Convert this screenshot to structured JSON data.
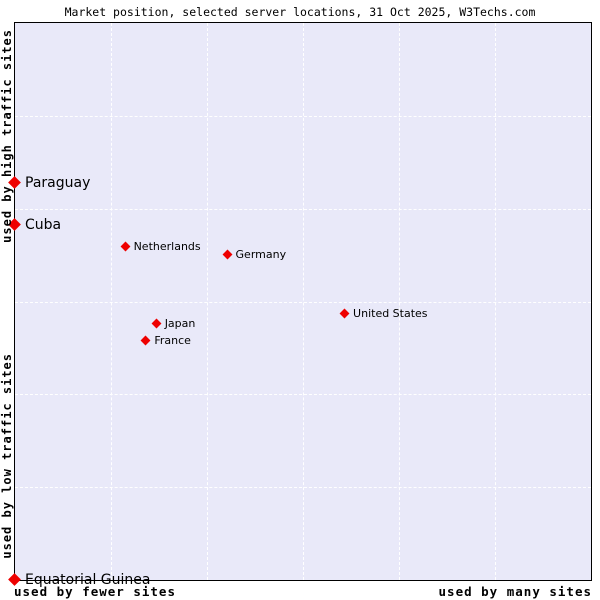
{
  "title": "Market position, selected server locations, 31 Oct 2025, W3Techs.com",
  "axes": {
    "y_top": "used by high traffic sites",
    "y_bottom": "used by low traffic sites",
    "x_left": "used by fewer sites",
    "x_right": "used by many sites"
  },
  "colors": {
    "marker": "#ee0000",
    "plot_background": "#e9e9f9",
    "grid_line": "#ffffff",
    "border": "#000000",
    "text": "#000000"
  },
  "chart_data": {
    "type": "scatter",
    "title": "Market position, selected server locations, 31 Oct 2025, W3Techs.com",
    "marker": "diamond",
    "grid": "dashed",
    "x_axis": {
      "label_left": "used by fewer sites",
      "label_right": "used by many sites",
      "range": [
        0,
        1
      ],
      "grid_divisions": 6
    },
    "y_axis": {
      "label_bottom": "used by low traffic sites",
      "label_top": "used by high traffic sites",
      "range": [
        0,
        1
      ],
      "grid_divisions": 6
    },
    "points": [
      {
        "label": "Paraguay",
        "x": 0.0,
        "y": 0.712,
        "large_label": true
      },
      {
        "label": "Cuba",
        "x": 0.0,
        "y": 0.637,
        "large_label": true
      },
      {
        "label": "Netherlands",
        "x": 0.192,
        "y": 0.598,
        "large_label": false
      },
      {
        "label": "Germany",
        "x": 0.369,
        "y": 0.583,
        "large_label": false
      },
      {
        "label": "Japan",
        "x": 0.246,
        "y": 0.46,
        "large_label": false
      },
      {
        "label": "France",
        "x": 0.228,
        "y": 0.429,
        "large_label": false
      },
      {
        "label": "United States",
        "x": 0.573,
        "y": 0.478,
        "large_label": false
      },
      {
        "label": "Equatorial Guinea",
        "x": 0.0,
        "y": 0.0,
        "large_label": true
      }
    ]
  }
}
